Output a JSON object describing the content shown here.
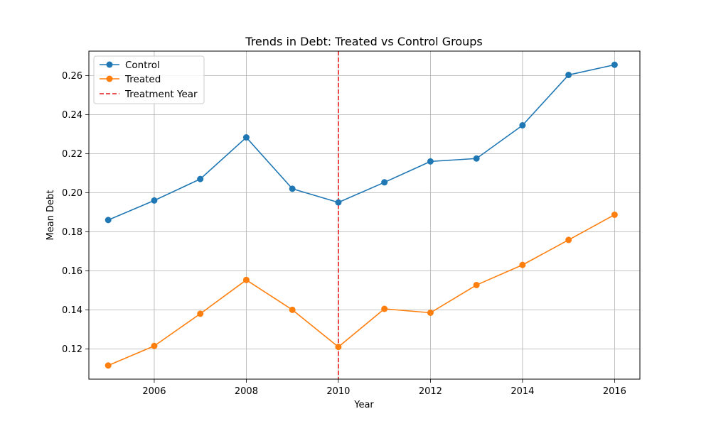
{
  "chart_data": {
    "type": "line",
    "title": "Trends in Debt: Treated vs Control Groups",
    "xlabel": "Year",
    "ylabel": "Mean Debt",
    "x": [
      2005,
      2006,
      2007,
      2008,
      2009,
      2010,
      2011,
      2012,
      2013,
      2014,
      2015,
      2016
    ],
    "xlim": [
      2004.58,
      2016.55
    ],
    "ylim": [
      0.1045,
      0.2725
    ],
    "x_ticks": [
      2006,
      2008,
      2010,
      2012,
      2014,
      2016
    ],
    "y_ticks": [
      0.12,
      0.14,
      0.16,
      0.18,
      0.2,
      0.22,
      0.24,
      0.26
    ],
    "grid": true,
    "legend_position": "top-left",
    "series": [
      {
        "name": "Control",
        "color": "#1f77b4",
        "style": "solid",
        "marker": "circle",
        "values": [
          0.186,
          0.196,
          0.207,
          0.2283,
          0.202,
          0.195,
          0.2053,
          0.216,
          0.2175,
          0.2345,
          0.2603,
          0.2655
        ]
      },
      {
        "name": "Treated",
        "color": "#ff7f0e",
        "style": "solid",
        "marker": "circle",
        "values": [
          0.1115,
          0.1215,
          0.138,
          0.1553,
          0.14,
          0.121,
          0.1405,
          0.1385,
          0.1527,
          0.163,
          0.1758,
          0.1887
        ]
      }
    ],
    "reference_lines": [
      {
        "name": "Treatment Year",
        "orientation": "vertical",
        "x": 2010,
        "color": "#e41a1c",
        "style": "dashed"
      }
    ]
  }
}
